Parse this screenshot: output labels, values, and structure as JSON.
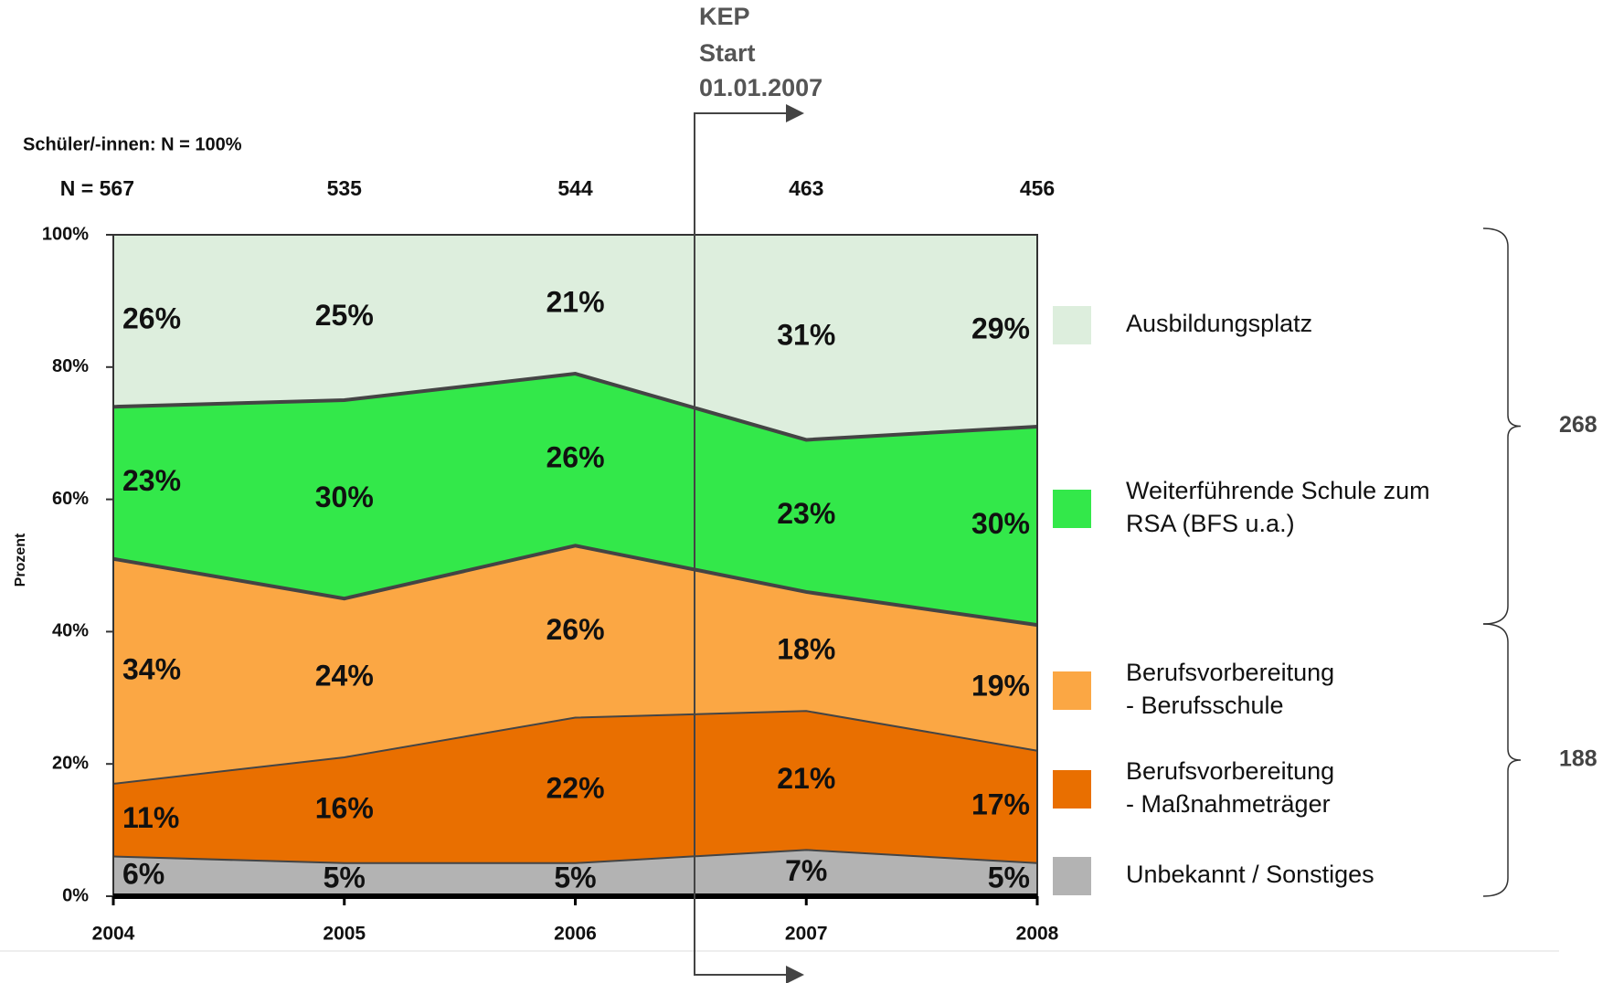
{
  "chart_data": {
    "type": "stacked_area",
    "annotations": {
      "subtitle": "Schüler/-innen: N = 100%",
      "kep": [
        "KEP",
        "Start",
        "01.01.2007"
      ]
    },
    "ylabel": "Prozent",
    "categories": [
      "2004",
      "2005",
      "2006",
      "2007",
      "2008"
    ],
    "sample_sizes": [
      {
        "value": 567,
        "label": "N = 567"
      },
      535,
      544,
      463,
      456
    ],
    "series": [
      {
        "name": "Unbekannt / Sonstiges",
        "color": "#b3b3b3",
        "values": [
          6,
          5,
          5,
          7,
          5
        ],
        "value_labels": [
          "6%",
          "5%",
          "5%",
          "7%",
          "5%"
        ]
      },
      {
        "name": "Berufsvorbereitung\n- Maßnahmeträger",
        "color": "#e96f00",
        "values": [
          11,
          16,
          22,
          21,
          17
        ],
        "value_labels": [
          "11%",
          "16%",
          "22%",
          "21%",
          "17%"
        ]
      },
      {
        "name": "Berufsvorbereitung\n- Berufsschule",
        "color": "#fba744",
        "values": [
          34,
          24,
          26,
          18,
          19
        ],
        "value_labels": [
          "34%",
          "24%",
          "26%",
          "18%",
          "19%"
        ]
      },
      {
        "name": "Weiterführende Schule zum\nRSA (BFS u.a.)",
        "color": "#33e84a",
        "values": [
          23,
          30,
          26,
          23,
          30
        ],
        "value_labels": [
          "23%",
          "30%",
          "26%",
          "23%",
          "30%"
        ]
      },
      {
        "name": "Ausbildungsplatz",
        "color": "#ddeedd",
        "values": [
          26,
          25,
          21,
          31,
          29
        ],
        "value_labels": [
          "26%",
          "25%",
          "21%",
          "31%",
          "29%"
        ]
      }
    ],
    "ylim": [
      0,
      100
    ],
    "yticks": [
      {
        "value": 0,
        "label": "0%"
      },
      {
        "value": 20,
        "label": "20%"
      },
      {
        "value": 40,
        "label": "40%"
      },
      {
        "value": 60,
        "label": "60%"
      },
      {
        "value": 80,
        "label": "80%"
      },
      {
        "value": 100,
        "label": "100%"
      }
    ],
    "brackets": [
      268,
      188
    ]
  }
}
